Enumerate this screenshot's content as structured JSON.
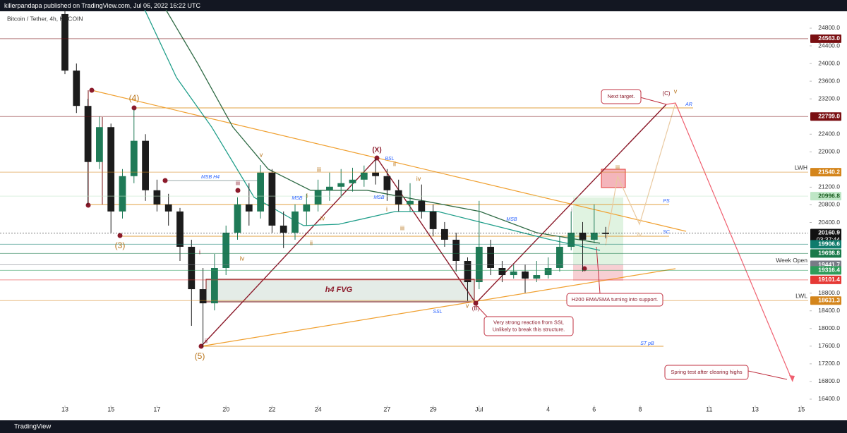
{
  "header": {
    "publisher": "killerpandapa published on TradingView.com, Jul 06, 2022 16:22 UTC",
    "symbol": "Bitcoin / Tether, 4h, KUCOIN"
  },
  "footer": {
    "brand": "TradingView"
  },
  "chart_data": {
    "type": "candlestick",
    "up_color": "#1f7a57",
    "down_color": "#1c1c1c",
    "xlim": [
      -2.822,
      32.3
    ],
    "xticks": [
      {
        "value": 0,
        "label": "13"
      },
      {
        "value": 2,
        "label": "15"
      },
      {
        "value": 4,
        "label": "17"
      },
      {
        "value": 7,
        "label": "20"
      },
      {
        "value": 9,
        "label": "22"
      },
      {
        "value": 11,
        "label": "24"
      },
      {
        "value": 14,
        "label": "27"
      },
      {
        "value": 16,
        "label": "29"
      },
      {
        "value": 18,
        "label": "Jul"
      },
      {
        "value": 21,
        "label": "4"
      },
      {
        "value": 23,
        "label": "6"
      },
      {
        "value": 25,
        "label": "8"
      },
      {
        "value": 28,
        "label": "11"
      },
      {
        "value": 30,
        "label": "13"
      },
      {
        "value": 32,
        "label": "15"
      }
    ],
    "ylim": [
      16256,
      25215
    ],
    "yticks": [
      {
        "value": 24800,
        "label": "24800.0"
      },
      {
        "value": 24400,
        "label": "24400.0"
      },
      {
        "value": 24000,
        "label": "24000.0"
      },
      {
        "value": 23600,
        "label": "23600.0"
      },
      {
        "value": 23200,
        "label": "23200.0"
      },
      {
        "value": 22400,
        "label": "22400.0"
      },
      {
        "value": 22000,
        "label": "22000.0"
      },
      {
        "value": 21200,
        "label": "21200.0"
      },
      {
        "value": 20800,
        "label": "20800.0"
      },
      {
        "value": 20400,
        "label": "20400.0"
      },
      {
        "value": 18800,
        "label": "18800.0"
      },
      {
        "value": 18400,
        "label": "18400.0"
      },
      {
        "value": 18000,
        "label": "18000.0"
      },
      {
        "value": 17600,
        "label": "17600.0"
      },
      {
        "value": 17200,
        "label": "17200.0"
      },
      {
        "value": 16800,
        "label": "16800.0"
      },
      {
        "value": 16400,
        "label": "16400.0"
      }
    ],
    "x": [
      0,
      0.5,
      1,
      1.5,
      2,
      2.5,
      3,
      3.5,
      4,
      4.5,
      5,
      5.5,
      6,
      6.5,
      7,
      7.5,
      8,
      8.5,
      9,
      9.5,
      10,
      10.5,
      11,
      11.5,
      12,
      12.5,
      13,
      13.5,
      14,
      14.5,
      15,
      15.5,
      16,
      16.5,
      17,
      17.5,
      18,
      18.5,
      19,
      19.5,
      20,
      20.5,
      21,
      21.5,
      22,
      22.5,
      23,
      23.5
    ],
    "open": [
      25120,
      23840,
      23040,
      21770,
      22560,
      20650,
      21450,
      22250,
      21130,
      20810,
      20650,
      19850,
      18890,
      18570,
      19370,
      20170,
      20810,
      20650,
      21530,
      20330,
      20170,
      20650,
      20810,
      21130,
      21210,
      21290,
      21370,
      21530,
      21450,
      21130,
      20810,
      20890,
      20650,
      20250,
      20010,
      19530,
      19050,
      19850,
      19370,
      19210,
      19290,
      19130,
      19210,
      19370,
      19850,
      20170,
      20010,
      20170
    ],
    "high": [
      25220,
      24000,
      23200,
      22800,
      22640,
      21610,
      22960,
      22400,
      21370,
      21050,
      20730,
      20010,
      19370,
      19690,
      20330,
      20970,
      21290,
      21700,
      21610,
      20650,
      20810,
      21050,
      21370,
      21530,
      21610,
      21640,
      21690,
      21850,
      21610,
      21370,
      21290,
      21260,
      20810,
      20410,
      20170,
      19610,
      20890,
      20010,
      19530,
      19450,
      19450,
      19530,
      19610,
      20090,
      20650,
      20410,
      20810,
      20300
    ],
    "low": [
      23760,
      22880,
      20790,
      21610,
      20170,
      20490,
      21290,
      20890,
      20650,
      20330,
      19530,
      18060,
      17580,
      18410,
      19210,
      20010,
      20330,
      20490,
      20170,
      19820,
      20010,
      20330,
      20650,
      20890,
      20970,
      21100,
      21210,
      21260,
      20890,
      20650,
      20650,
      20490,
      20090,
      19850,
      19290,
      18620,
      18890,
      19210,
      19050,
      19130,
      18810,
      19050,
      19130,
      19290,
      19770,
      19290,
      19930,
      20040
    ],
    "close": [
      23840,
      23040,
      21770,
      22560,
      20650,
      21450,
      22250,
      21130,
      20810,
      20650,
      19850,
      18890,
      18570,
      19370,
      20170,
      20810,
      20650,
      21530,
      20330,
      20170,
      20650,
      20810,
      21130,
      21210,
      21290,
      21370,
      21530,
      21450,
      21130,
      20810,
      20890,
      20650,
      20250,
      20010,
      19530,
      19050,
      19850,
      19370,
      19210,
      19290,
      19130,
      19210,
      19370,
      19850,
      20170,
      20010,
      20170,
      20140
    ],
    "moving_averages": [
      {
        "color": "#1f9e8a",
        "x": [
          3.47,
          4.85,
          6.38,
          8.22,
          10.37,
          11.9,
          14.36,
          16.2,
          18.65,
          21.1,
          23.25
        ],
        "values": [
          25215,
          23680,
          22560,
          20970,
          20330,
          20360,
          20650,
          20650,
          20330,
          20010,
          19770
        ]
      },
      {
        "color": "#2f6b45",
        "x": [
          4.39,
          5.77,
          7.3,
          8.83,
          10.67,
          13.13,
          15.58,
          18.04,
          20.49,
          23.25
        ],
        "values": [
          25215,
          24000,
          22560,
          21610,
          21130,
          21130,
          20890,
          20650,
          20170,
          19930
        ]
      }
    ],
    "price_badges": [
      {
        "value": 24563,
        "label": "24563.0",
        "color": "#7a0f12"
      },
      {
        "value": 22799,
        "label": "22799.0",
        "color": "#7a0f12"
      },
      {
        "value": 21540.2,
        "label": "21540.2",
        "color": "#d4851b",
        "note": "LWH"
      },
      {
        "value": 20996.8,
        "label": "20996.8",
        "color": "#bfe6c6"
      },
      {
        "value": 20160.9,
        "label": "20160.9",
        "color": "#111111",
        "sublabel": "03:37:44"
      },
      {
        "value": 19906.6,
        "label": "19906.6",
        "color": "#0f7b6c"
      },
      {
        "value": 19698.8,
        "label": "19698.8",
        "color": "#18794a"
      },
      {
        "value": 19441.7,
        "label": "19441.7",
        "color": "#787b86",
        "note": "Week Open"
      },
      {
        "value": 19316.4,
        "label": "19316.4",
        "color": "#2e9c5a"
      },
      {
        "value": 19101.4,
        "label": "19101.4",
        "color": "#e53935"
      },
      {
        "value": 18631.3,
        "label": "18631.3",
        "color": "#d4851b",
        "note": "LWL"
      }
    ],
    "annotations": [
      {
        "text": "(4)"
      },
      {
        "text": "(3)"
      },
      {
        "text": "(5)"
      },
      {
        "text": "(X)"
      },
      {
        "text": "(B)"
      },
      {
        "text": "(C)"
      },
      {
        "text": "v"
      },
      {
        "text": "iii"
      },
      {
        "text": "iii"
      },
      {
        "text": "i"
      },
      {
        "text": "iv"
      },
      {
        "text": "ii"
      },
      {
        "text": "iv"
      },
      {
        "text": "i"
      },
      {
        "text": "ii"
      },
      {
        "text": "iv"
      },
      {
        "text": "i"
      },
      {
        "text": "iii"
      },
      {
        "text": "v"
      },
      {
        "text": "ii"
      },
      {
        "text": "i"
      },
      {
        "text": "iii"
      },
      {
        "text": "iv"
      },
      {
        "text": "v"
      },
      {
        "text": "MSB H4"
      },
      {
        "text": "MSB"
      },
      {
        "text": "MSB"
      },
      {
        "text": "MSB"
      },
      {
        "text": "BSL"
      },
      {
        "text": "SSL"
      },
      {
        "text": "AR"
      },
      {
        "text": "PS"
      },
      {
        "text": "SC"
      },
      {
        "text": "ST pB"
      },
      {
        "text": "h4 FVG"
      }
    ],
    "callouts": [
      {
        "lines": [
          "Next target."
        ]
      },
      {
        "lines": [
          "H200 EMA/SMA turning into support."
        ]
      },
      {
        "lines": [
          "Very strong reaction from SSL",
          "Unlikely to break this structure."
        ]
      },
      {
        "lines": [
          "Spring test after clearing highs"
        ]
      }
    ]
  }
}
